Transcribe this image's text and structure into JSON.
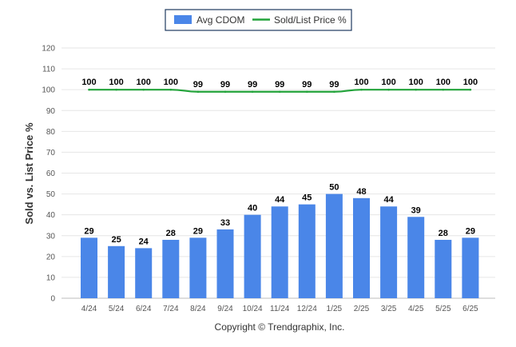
{
  "chart_data": {
    "type": "bar",
    "ylabel": "Sold vs. List Price %",
    "ylim": [
      0,
      120
    ],
    "yticks": [
      0,
      10,
      20,
      30,
      40,
      50,
      60,
      70,
      80,
      90,
      100,
      110,
      120
    ],
    "grid": true,
    "legend_position": "top-center",
    "categories": [
      "4/24",
      "5/24",
      "6/24",
      "7/24",
      "8/24",
      "9/24",
      "10/24",
      "11/24",
      "12/24",
      "1/25",
      "2/25",
      "3/25",
      "4/25",
      "5/25",
      "6/25"
    ],
    "series": [
      {
        "name": "Avg CDOM",
        "type": "bar",
        "color": "#4a86e8",
        "values": [
          29,
          25,
          24,
          28,
          29,
          33,
          40,
          44,
          45,
          50,
          48,
          44,
          39,
          28,
          29
        ]
      },
      {
        "name": "Sold/List Price %",
        "type": "line",
        "color": "#22a33a",
        "values": [
          100,
          100,
          100,
          100,
          99,
          99,
          99,
          99,
          99,
          99,
          100,
          100,
          100,
          100,
          100
        ]
      }
    ]
  },
  "footer": {
    "copyright": "Copyright © Trendgraphix, Inc."
  }
}
